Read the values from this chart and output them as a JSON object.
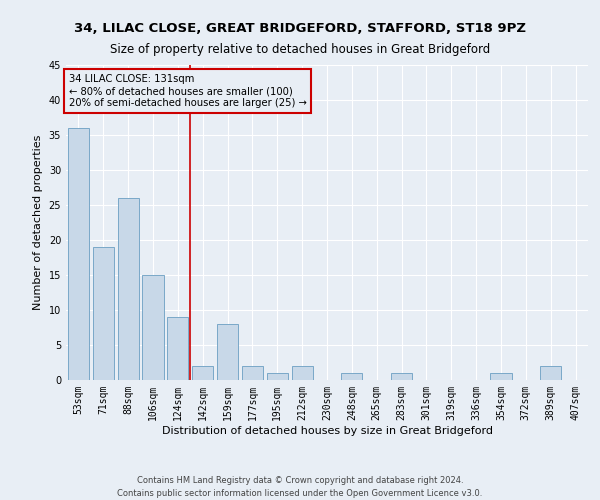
{
  "title": "34, LILAC CLOSE, GREAT BRIDGEFORD, STAFFORD, ST18 9PZ",
  "subtitle": "Size of property relative to detached houses in Great Bridgeford",
  "xlabel": "Distribution of detached houses by size in Great Bridgeford",
  "ylabel": "Number of detached properties",
  "categories": [
    "53sqm",
    "71sqm",
    "88sqm",
    "106sqm",
    "124sqm",
    "142sqm",
    "159sqm",
    "177sqm",
    "195sqm",
    "212sqm",
    "230sqm",
    "248sqm",
    "265sqm",
    "283sqm",
    "301sqm",
    "319sqm",
    "336sqm",
    "354sqm",
    "372sqm",
    "389sqm",
    "407sqm"
  ],
  "values": [
    36,
    19,
    26,
    15,
    9,
    2,
    8,
    2,
    1,
    2,
    0,
    1,
    0,
    1,
    0,
    0,
    0,
    1,
    0,
    2,
    0
  ],
  "bar_color": "#c8d8e8",
  "bar_edge_color": "#7aa8c8",
  "vline_x": 4.5,
  "vline_color": "#cc0000",
  "annotation_line1": "34 LILAC CLOSE: 131sqm",
  "annotation_line2": "← 80% of detached houses are smaller (100)",
  "annotation_line3": "20% of semi-detached houses are larger (25) →",
  "annotation_box_color": "#cc0000",
  "ylim": [
    0,
    45
  ],
  "yticks": [
    0,
    5,
    10,
    15,
    20,
    25,
    30,
    35,
    40,
    45
  ],
  "footer_line1": "Contains HM Land Registry data © Crown copyright and database right 2024.",
  "footer_line2": "Contains public sector information licensed under the Open Government Licence v3.0.",
  "bg_color": "#e8eef5",
  "grid_color": "#ffffff",
  "title_fontsize": 9.5,
  "subtitle_fontsize": 8.5,
  "axis_label_fontsize": 8,
  "tick_fontsize": 7,
  "footer_fontsize": 6
}
